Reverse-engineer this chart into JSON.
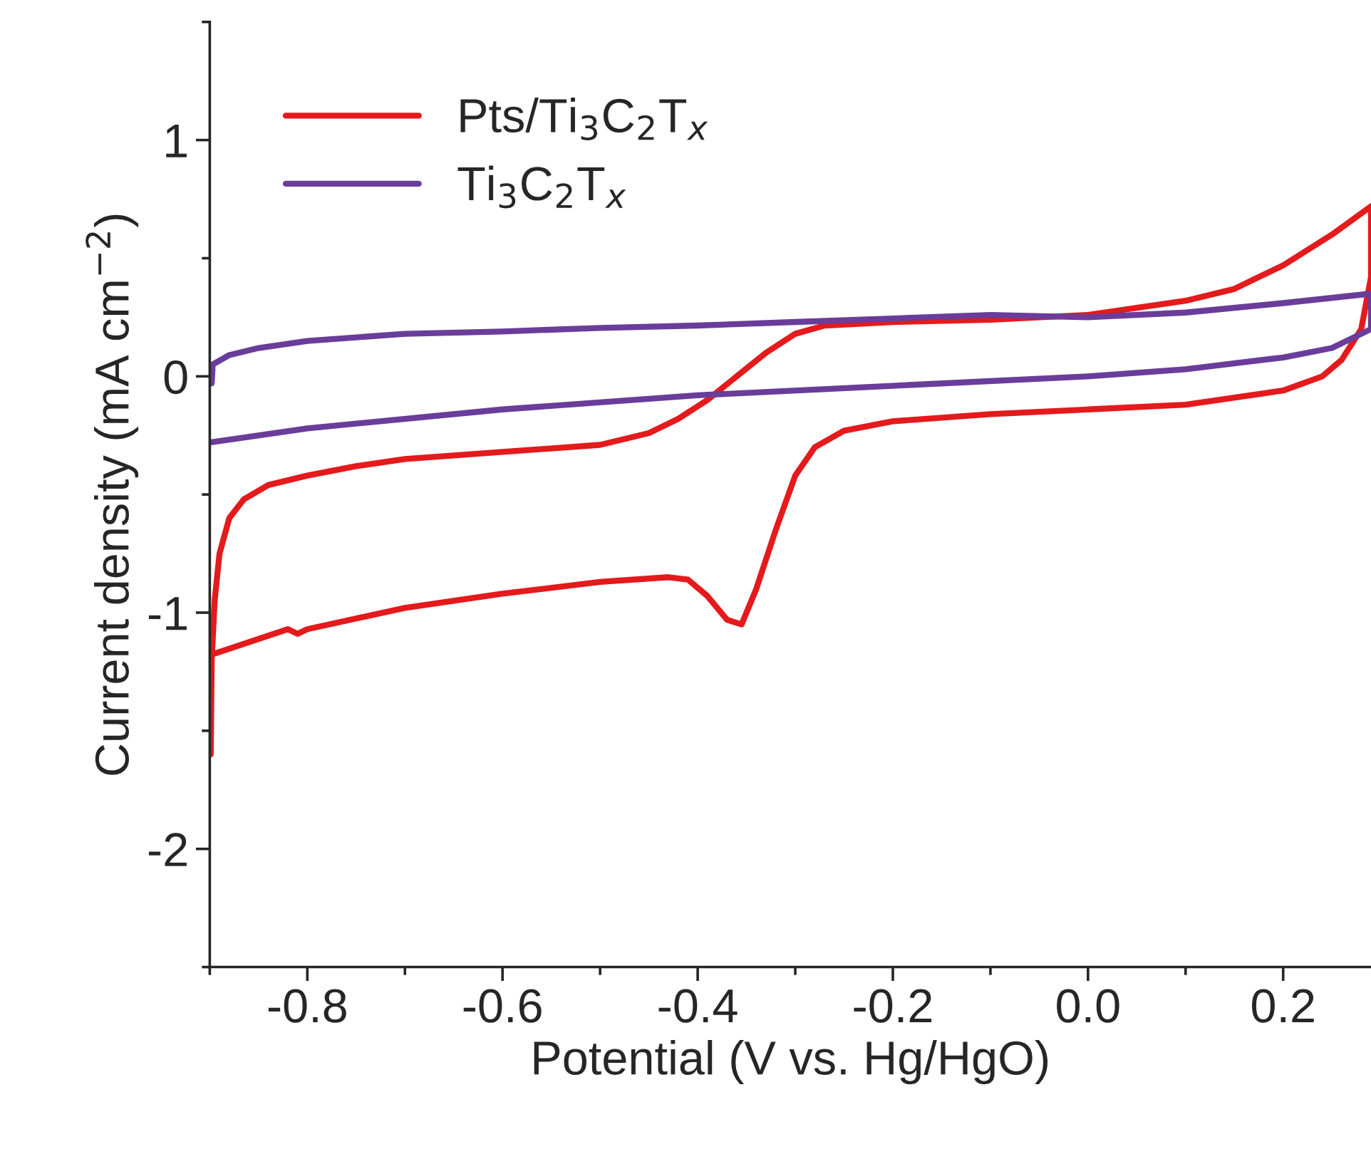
{
  "chart_data": {
    "type": "line",
    "xlabel": "Potential (V vs. Hg/HgO)",
    "ylabel": "Current density (mA cm$^{−2}$)",
    "xlim": [
      -0.9,
      0.29
    ],
    "ylim": [
      -2.5,
      1.5
    ],
    "xticks": [
      -0.8,
      -0.6,
      -0.4,
      -0.2,
      {
        "value": 0,
        "label": "0.0"
      },
      0.2
    ],
    "yticks": [
      -2,
      -1,
      0,
      1
    ],
    "grid": false,
    "legend": "top left",
    "marker": "none",
    "line_style": "solid",
    "series": [
      {
        "name": "Pts/Ti$_{3}$C$_{2}$T$_{x}$",
        "color": "#e41a1c",
        "x": [
          -0.899,
          -0.898,
          -0.895,
          -0.89,
          -0.88,
          -0.865,
          -0.84,
          -0.8,
          -0.75,
          -0.7,
          -0.6,
          -0.5,
          -0.45,
          -0.42,
          -0.39,
          -0.36,
          -0.33,
          -0.3,
          -0.27,
          -0.2,
          -0.1,
          0.0,
          0.1,
          0.15,
          0.2,
          0.25,
          0.29,
          0.29,
          0.28,
          0.26,
          0.24,
          0.2,
          0.1,
          0.0,
          -0.1,
          -0.2,
          -0.25,
          -0.28,
          -0.3,
          -0.32,
          -0.34,
          -0.355,
          -0.37,
          -0.39,
          -0.41,
          -0.43,
          -0.5,
          -0.6,
          -0.7,
          -0.8,
          -0.81,
          -0.82,
          -0.9
        ],
        "values": [
          -1.6,
          -1.2,
          -0.95,
          -0.75,
          -0.6,
          -0.52,
          -0.46,
          -0.42,
          -0.38,
          -0.35,
          -0.32,
          -0.29,
          -0.24,
          -0.18,
          -0.1,
          0.0,
          0.1,
          0.18,
          0.215,
          0.23,
          0.24,
          0.26,
          0.32,
          0.37,
          0.47,
          0.6,
          0.72,
          0.42,
          0.2,
          0.07,
          0.0,
          -0.06,
          -0.12,
          -0.14,
          -0.16,
          -0.19,
          -0.23,
          -0.3,
          -0.42,
          -0.65,
          -0.9,
          -1.05,
          -1.03,
          -0.93,
          -0.86,
          -0.85,
          -0.87,
          -0.92,
          -0.98,
          -1.07,
          -1.09,
          -1.07,
          -1.18
        ]
      },
      {
        "name": "Ti$_{3}$C$_{2}$T$_{x}$",
        "color": "#6a3d9a",
        "x": [
          -0.898,
          -0.897,
          -0.88,
          -0.85,
          -0.8,
          -0.7,
          -0.6,
          -0.5,
          -0.4,
          -0.3,
          -0.2,
          -0.1,
          0.0,
          0.1,
          0.2,
          0.29,
          0.29,
          0.25,
          0.2,
          0.1,
          0.0,
          -0.2,
          -0.4,
          -0.6,
          -0.8,
          -0.9
        ],
        "values": [
          -0.03,
          0.05,
          0.09,
          0.12,
          0.15,
          0.18,
          0.19,
          0.205,
          0.215,
          0.23,
          0.245,
          0.26,
          0.25,
          0.27,
          0.31,
          0.35,
          0.2,
          0.12,
          0.08,
          0.03,
          0.0,
          -0.04,
          -0.08,
          -0.14,
          -0.22,
          -0.28
        ]
      }
    ]
  }
}
